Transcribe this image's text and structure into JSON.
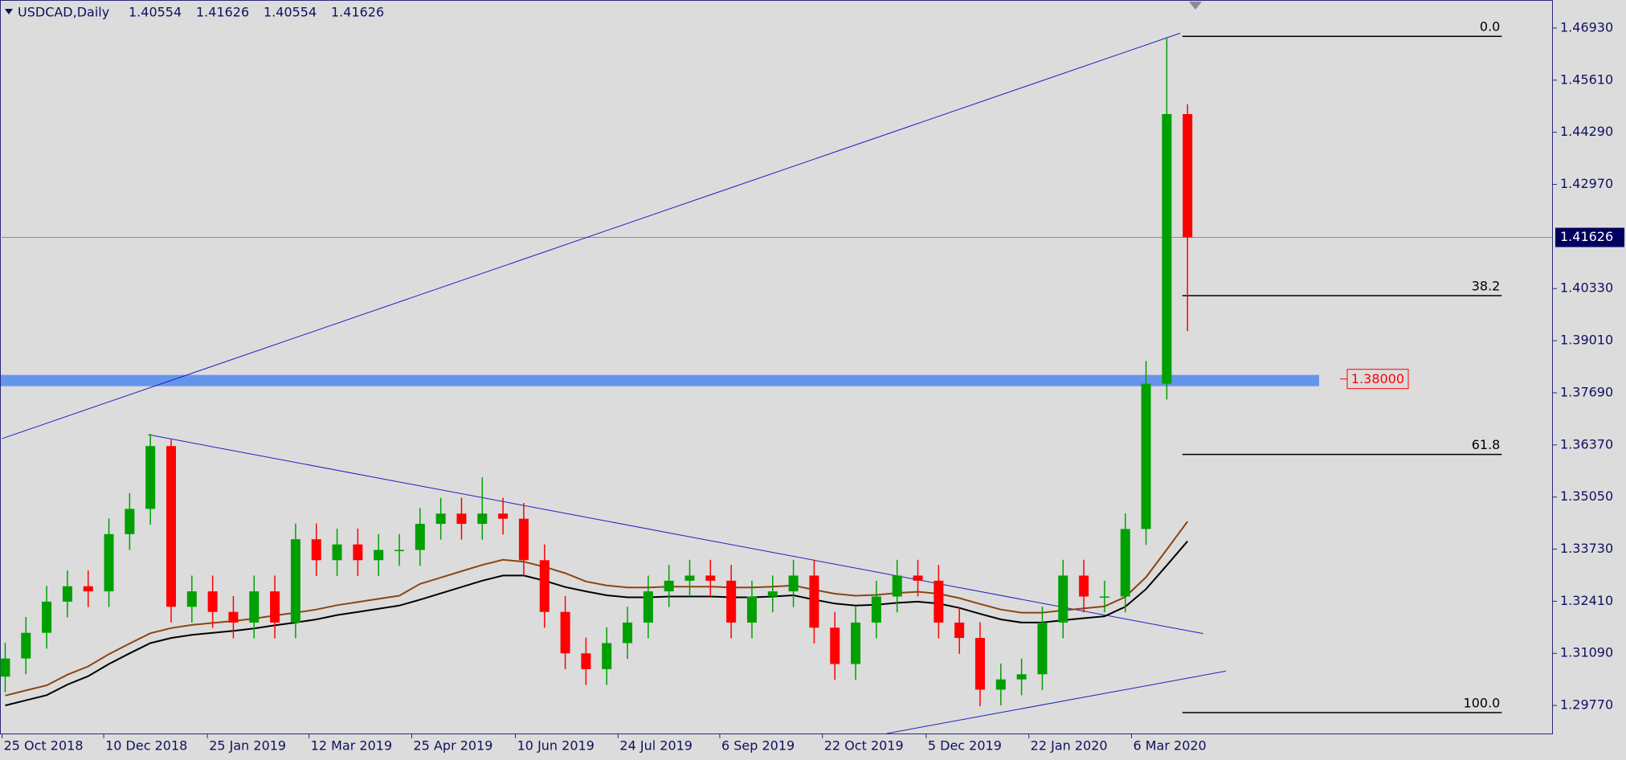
{
  "chart_data": {
    "type": "candlestick",
    "symbol": "USDCAD,Daily",
    "ohlc_header": [
      "1.40554",
      "1.41626",
      "1.40554",
      "1.41626"
    ],
    "x_labels": [
      "25 Oct 2018",
      "10 Dec 2018",
      "25 Jan 2019",
      "12 Mar 2019",
      "25 Apr 2019",
      "10 Jun 2019",
      "24 Jul 2019",
      "6 Sep 2019",
      "22 Oct 2019",
      "5 Dec 2019",
      "22 Jan 2020",
      "6 Mar 2020"
    ],
    "up_color": "#00a000",
    "down_color": "#ff0000",
    "open": [
      1.305,
      1.3096,
      1.3161,
      1.324,
      1.3279,
      1.3266,
      1.3411,
      1.3475,
      1.3634,
      1.3227,
      1.3266,
      1.3214,
      1.3187,
      1.3266,
      1.3187,
      1.3398,
      1.3345,
      1.3385,
      1.3345,
      1.3371,
      1.3371,
      1.3437,
      1.3463,
      1.3437,
      1.3463,
      1.345,
      1.3345,
      1.3214,
      1.3109,
      1.3069,
      1.3135,
      1.3187,
      1.3266,
      1.3293,
      1.3306,
      1.3293,
      1.3187,
      1.3253,
      1.3266,
      1.3306,
      1.3174,
      1.3082,
      1.3187,
      1.3253,
      1.3306,
      1.3293,
      1.3187,
      1.3148,
      1.3017,
      1.3043,
      1.3056,
      1.3187,
      1.3306,
      1.3253,
      1.3253,
      1.3424,
      1.3792,
      1.4475
    ],
    "high": [
      1.3136,
      1.3201,
      1.328,
      1.3319,
      1.3319,
      1.3451,
      1.3515,
      1.3665,
      1.365,
      1.3306,
      1.3306,
      1.3254,
      1.3306,
      1.3306,
      1.3438,
      1.3438,
      1.3425,
      1.3425,
      1.3411,
      1.3411,
      1.3477,
      1.3503,
      1.3503,
      1.3555,
      1.3503,
      1.349,
      1.3385,
      1.3254,
      1.3149,
      1.3175,
      1.3227,
      1.3306,
      1.3333,
      1.3346,
      1.3346,
      1.3333,
      1.3293,
      1.3306,
      1.3346,
      1.3346,
      1.3214,
      1.3227,
      1.3293,
      1.3346,
      1.3346,
      1.3333,
      1.3227,
      1.3188,
      1.3083,
      1.3096,
      1.3227,
      1.3346,
      1.3346,
      1.3293,
      1.3464,
      1.385,
      1.4667,
      1.45
    ],
    "low": [
      1.301,
      1.3056,
      1.3121,
      1.32,
      1.3226,
      1.3226,
      1.3371,
      1.3435,
      1.3187,
      1.3187,
      1.3174,
      1.3147,
      1.3147,
      1.3147,
      1.3147,
      1.3305,
      1.3305,
      1.3305,
      1.3305,
      1.3331,
      1.3331,
      1.3397,
      1.3397,
      1.3397,
      1.341,
      1.3305,
      1.3174,
      1.3069,
      1.3029,
      1.3029,
      1.3095,
      1.3147,
      1.3226,
      1.3253,
      1.3253,
      1.3147,
      1.3147,
      1.3213,
      1.3226,
      1.3134,
      1.3042,
      1.3042,
      1.3147,
      1.3213,
      1.3253,
      1.3147,
      1.3108,
      1.2975,
      1.2977,
      1.3003,
      1.3016,
      1.3147,
      1.3213,
      1.3213,
      1.3213,
      1.3384,
      1.3752,
      1.3925
    ],
    "close": [
      1.3096,
      1.3161,
      1.324,
      1.3279,
      1.3266,
      1.3411,
      1.3475,
      1.3634,
      1.3227,
      1.3266,
      1.3214,
      1.3187,
      1.3266,
      1.3187,
      1.3398,
      1.3345,
      1.3385,
      1.3345,
      1.3371,
      1.3371,
      1.3437,
      1.3463,
      1.3437,
      1.3463,
      1.345,
      1.3345,
      1.3214,
      1.3109,
      1.3069,
      1.3135,
      1.3187,
      1.3266,
      1.3293,
      1.3306,
      1.3293,
      1.3187,
      1.3253,
      1.3266,
      1.3306,
      1.3174,
      1.3082,
      1.3187,
      1.3253,
      1.3306,
      1.3293,
      1.3187,
      1.3148,
      1.3017,
      1.3043,
      1.3056,
      1.3187,
      1.3306,
      1.3253,
      1.3253,
      1.3424,
      1.3792,
      1.4475,
      1.4163
    ],
    "moving_averages": [
      {
        "color": "#000000",
        "values": [
          1.2977,
          1.299,
          1.3003,
          1.303,
          1.3051,
          1.3082,
          1.3109,
          1.3135,
          1.3148,
          1.3156,
          1.3161,
          1.3166,
          1.3172,
          1.318,
          1.3187,
          1.3195,
          1.3206,
          1.3214,
          1.3222,
          1.323,
          1.3245,
          1.3261,
          1.3277,
          1.3293,
          1.3306,
          1.3306,
          1.3293,
          1.3277,
          1.3266,
          1.3256,
          1.3251,
          1.3251,
          1.3253,
          1.3253,
          1.3253,
          1.3251,
          1.3251,
          1.3253,
          1.3256,
          1.3245,
          1.3235,
          1.323,
          1.3232,
          1.3237,
          1.324,
          1.3235,
          1.3224,
          1.3209,
          1.3195,
          1.3187,
          1.3187,
          1.3193,
          1.3198,
          1.3203,
          1.3227,
          1.3272,
          1.3332,
          1.3393
        ]
      },
      {
        "color": "#8b4513",
        "values": [
          1.3002,
          1.3015,
          1.3028,
          1.3055,
          1.3076,
          1.3107,
          1.3134,
          1.316,
          1.3173,
          1.3181,
          1.3186,
          1.3191,
          1.3197,
          1.3205,
          1.3212,
          1.322,
          1.3231,
          1.3239,
          1.3247,
          1.3255,
          1.3285,
          1.3301,
          1.3317,
          1.3333,
          1.3346,
          1.3341,
          1.3328,
          1.3312,
          1.3291,
          1.3281,
          1.3276,
          1.3276,
          1.3278,
          1.3278,
          1.3278,
          1.3276,
          1.3276,
          1.3278,
          1.3281,
          1.327,
          1.326,
          1.3255,
          1.3257,
          1.3262,
          1.3265,
          1.326,
          1.3249,
          1.3234,
          1.322,
          1.3212,
          1.3212,
          1.3218,
          1.3223,
          1.3228,
          1.3252,
          1.3302,
          1.3372,
          1.3443
        ]
      }
    ],
    "trendlines": [
      {
        "from": 1.3653,
        "to": 1.468
      },
      {
        "from": 1.3663,
        "to": 1.3159
      },
      {
        "from": 1.2906,
        "to": 1.3064
      }
    ],
    "fibonacci": [
      {
        "label": "0.0",
        "price": 1.4672
      },
      {
        "label": "38.2",
        "price": 1.4015
      },
      {
        "label": "61.8",
        "price": 1.3613
      },
      {
        "label": "100.0",
        "price": 1.2959
      }
    ],
    "level": {
      "value": 1.38,
      "label": "1.38000"
    },
    "current_price": {
      "value": 1.41626,
      "label": "1.41626"
    },
    "ylim": [
      1.2906,
      1.4764
    ],
    "yticks": [
      {
        "value": 1.4693,
        "label": "1.46930"
      },
      {
        "value": 1.4561,
        "label": "1.45610"
      },
      {
        "value": 1.4429,
        "label": "1.44290"
      },
      {
        "value": 1.4297,
        "label": "1.42970"
      },
      {
        "value": 1.4033,
        "label": "1.40330"
      },
      {
        "value": 1.3901,
        "label": "1.39010"
      },
      {
        "value": 1.3769,
        "label": "1.37690"
      },
      {
        "value": 1.3637,
        "label": "1.36370"
      },
      {
        "value": 1.3505,
        "label": "1.35050"
      },
      {
        "value": 1.3373,
        "label": "1.33730"
      },
      {
        "value": 1.3241,
        "label": "1.32410"
      },
      {
        "value": 1.3109,
        "label": "1.31090"
      },
      {
        "value": 1.2977,
        "label": "1.29770"
      }
    ]
  }
}
